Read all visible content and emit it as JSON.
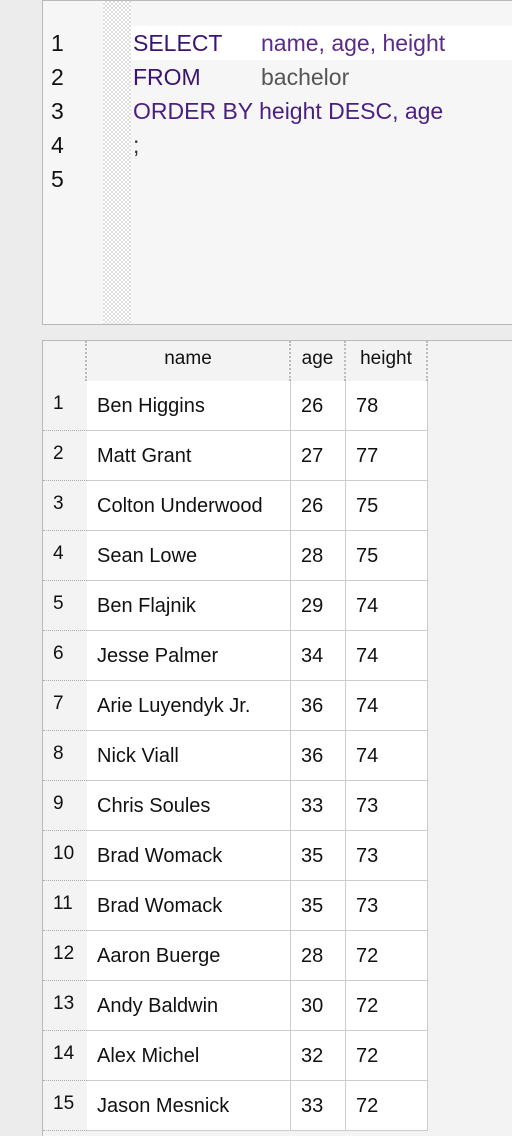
{
  "editor": {
    "line_numbers": [
      1,
      2,
      3,
      4,
      5
    ],
    "lines": [
      [
        "SELECT",
        "name, age, height"
      ],
      [
        "FROM",
        "bachelor"
      ],
      [
        "ORDER BY height DESC, age"
      ],
      [
        ";"
      ]
    ]
  },
  "table": {
    "columns": [
      "name",
      "age",
      "height"
    ],
    "rows": [
      [
        1,
        "Ben Higgins",
        26,
        78
      ],
      [
        2,
        "Matt Grant",
        27,
        77
      ],
      [
        3,
        "Colton Underwood",
        26,
        75
      ],
      [
        4,
        "Sean Lowe",
        28,
        75
      ],
      [
        5,
        "Ben Flajnik",
        29,
        74
      ],
      [
        6,
        "Jesse Palmer",
        34,
        74
      ],
      [
        7,
        "Arie Luyendyk Jr.",
        36,
        74
      ],
      [
        8,
        "Nick Viall",
        36,
        74
      ],
      [
        9,
        "Chris Soules",
        33,
        73
      ],
      [
        10,
        "Brad Womack",
        35,
        73
      ],
      [
        11,
        "Brad Womack",
        35,
        73
      ],
      [
        12,
        "Aaron Buerge",
        28,
        72
      ],
      [
        13,
        "Andy Baldwin",
        30,
        72
      ],
      [
        14,
        "Alex Michel",
        32,
        72
      ],
      [
        15,
        "Jason Mesnick",
        33,
        72
      ]
    ]
  }
}
